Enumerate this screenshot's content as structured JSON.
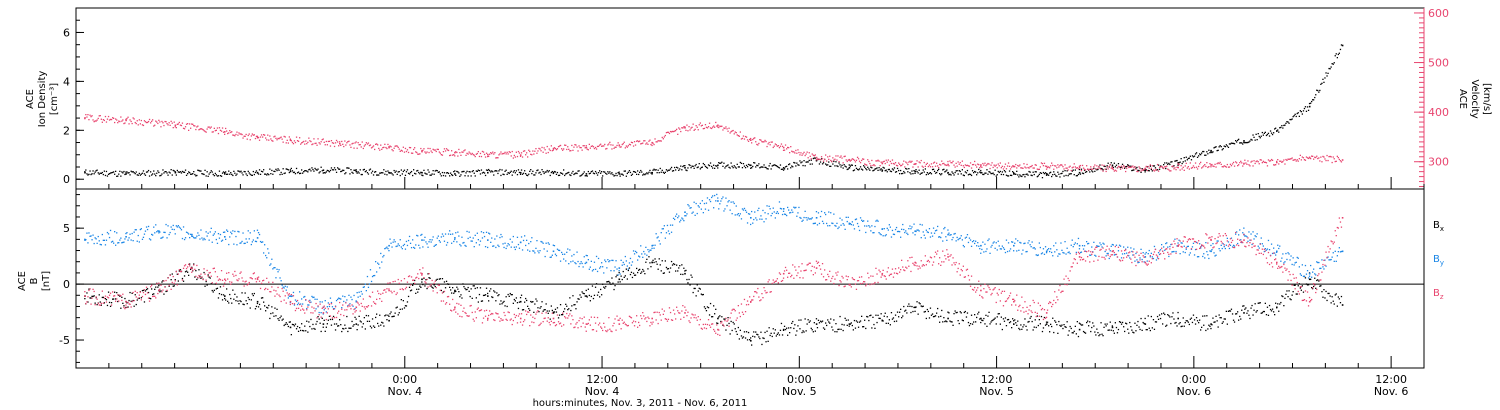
{
  "chart_data": [
    {
      "type": "scatter",
      "panel": "plasma",
      "x_range_hours": [
        -20,
        62
      ],
      "ylabel_left": [
        "ACE",
        "Ion Density",
        "[cm⁻³]"
      ],
      "ylabel_right": [
        "ACE",
        "Velocity",
        "[km/s]"
      ],
      "y_left_lim": [
        -0.4,
        7.0
      ],
      "y_left_ticks": [
        0,
        2,
        4,
        6
      ],
      "y_right_lim": [
        245,
        610
      ],
      "y_right_ticks": [
        300,
        400,
        500,
        600
      ],
      "series": [
        {
          "axis": "left",
          "color": "#000000",
          "x": [
            -19.5,
            -17,
            -14,
            -11,
            -9,
            -7,
            -5,
            -3,
            -1,
            1,
            3,
            5,
            7,
            9,
            11,
            13,
            15,
            17,
            19,
            21,
            23,
            25,
            27,
            29,
            31,
            33,
            35,
            37,
            39,
            41,
            43,
            45,
            47,
            49,
            51,
            53,
            55,
            57
          ],
          "y": [
            0.3,
            0.25,
            0.3,
            0.25,
            0.3,
            0.35,
            0.4,
            0.35,
            0.3,
            0.3,
            0.25,
            0.3,
            0.3,
            0.3,
            0.25,
            0.25,
            0.3,
            0.5,
            0.6,
            0.6,
            0.5,
            0.8,
            0.5,
            0.4,
            0.35,
            0.3,
            0.3,
            0.25,
            0.2,
            0.3,
            0.6,
            0.4,
            0.7,
            1.2,
            1.6,
            2.0,
            3.0,
            5.5
          ]
        },
        {
          "axis": "right",
          "color": "#e8456f",
          "x": [
            -19.5,
            -17,
            -14,
            -11,
            -9,
            -7,
            -4,
            -1,
            1,
            3,
            5,
            7,
            9,
            11,
            13,
            15,
            17,
            19,
            21,
            23,
            25,
            27,
            29,
            31,
            33,
            35,
            37,
            39,
            41,
            43,
            45,
            47,
            49,
            51,
            53,
            55,
            57
          ],
          "y": [
            390,
            385,
            375,
            362,
            350,
            345,
            338,
            330,
            322,
            320,
            316,
            315,
            328,
            330,
            335,
            340,
            370,
            375,
            345,
            330,
            310,
            305,
            298,
            297,
            296,
            295,
            292,
            292,
            290,
            288,
            288,
            290,
            295,
            298,
            300,
            310,
            305
          ]
        }
      ]
    },
    {
      "type": "scatter",
      "panel": "magnetic-field",
      "x_range_hours": [
        -20,
        62
      ],
      "ylabel_left": [
        "ACE",
        "B",
        "[nT]"
      ],
      "y_lim": [
        -7.5,
        8.5
      ],
      "y_ticks": [
        -5,
        0,
        5
      ],
      "series": [
        {
          "name": "Bx",
          "color": "#000000",
          "x": [
            -19.5,
            -17,
            -15,
            -13,
            -11,
            -9,
            -7,
            -5,
            -3,
            -1,
            1,
            3,
            5,
            7,
            9,
            11,
            13,
            15,
            17,
            19,
            21,
            23,
            25,
            27,
            29,
            31,
            33,
            35,
            37,
            39,
            41,
            43,
            45,
            47,
            49,
            51,
            53,
            55,
            57
          ],
          "y": [
            -1.0,
            -1.5,
            -0.5,
            1.5,
            -1.0,
            -1.5,
            -3.8,
            -3.5,
            -3.5,
            -3.2,
            0.5,
            -0.5,
            -1.0,
            -1.5,
            -2.5,
            -1.0,
            0.5,
            2.0,
            1.0,
            -3.0,
            -5.0,
            -4.0,
            -3.5,
            -3.5,
            -3.2,
            -2.0,
            -3.0,
            -3.0,
            -3.5,
            -3.5,
            -4.0,
            -3.8,
            -3.5,
            -3.0,
            -3.5,
            -2.5,
            -2.0,
            0.5,
            -1.8
          ]
        },
        {
          "name": "By",
          "color": "#1a86e6",
          "x": [
            -19.5,
            -17,
            -15,
            -13,
            -11,
            -9,
            -7,
            -5,
            -3,
            -1,
            1,
            3,
            5,
            7,
            9,
            11,
            13,
            15,
            17,
            19,
            21,
            23,
            25,
            27,
            29,
            31,
            33,
            35,
            37,
            39,
            41,
            43,
            45,
            47,
            49,
            51,
            53,
            55,
            57
          ],
          "y": [
            4.0,
            4.3,
            4.8,
            4.5,
            4.3,
            4.2,
            -1.0,
            -2.0,
            -1.5,
            3.5,
            4.0,
            4.2,
            4.0,
            3.8,
            3.0,
            2.0,
            1.5,
            3.5,
            6.5,
            7.5,
            6.0,
            6.8,
            6.0,
            5.5,
            5.0,
            4.8,
            4.5,
            3.5,
            3.5,
            3.0,
            3.5,
            3.0,
            2.5,
            3.5,
            3.0,
            4.5,
            3.0,
            1.0,
            3.0
          ]
        },
        {
          "name": "Bz",
          "color": "#e8456f",
          "x": [
            -19.5,
            -17,
            -15,
            -13,
            -11,
            -9,
            -7,
            -5,
            -3,
            -1,
            1,
            3,
            5,
            7,
            9,
            11,
            13,
            15,
            17,
            19,
            21,
            23,
            25,
            27,
            29,
            31,
            33,
            35,
            37,
            39,
            41,
            43,
            45,
            47,
            49,
            51,
            53,
            55,
            57
          ],
          "y": [
            -1.0,
            -1.5,
            -0.5,
            1.5,
            0.5,
            0.5,
            -1.5,
            -2.5,
            -2.0,
            -0.5,
            1.0,
            -2.0,
            -3.0,
            -3.0,
            -3.0,
            -3.5,
            -3.5,
            -3.0,
            -2.5,
            -4.0,
            -1.5,
            1.0,
            1.5,
            0.0,
            1.0,
            2.0,
            2.5,
            -0.5,
            -1.5,
            -2.5,
            2.5,
            3.0,
            2.0,
            3.5,
            4.0,
            4.0,
            2.0,
            -1.5,
            6.0
          ]
        }
      ],
      "zero_line": true
    }
  ],
  "x_axis": {
    "ticks": [
      {
        "hours": 0,
        "time": "0:00",
        "day": "Nov. 4"
      },
      {
        "hours": 12,
        "time": "12:00",
        "day": "Nov. 4"
      },
      {
        "hours": 24,
        "time": "0:00",
        "day": "Nov. 5"
      },
      {
        "hours": 36,
        "time": "12:00",
        "day": "Nov. 5"
      },
      {
        "hours": 48,
        "time": "0:00",
        "day": "Nov. 6"
      },
      {
        "hours": 60,
        "time": "12:00",
        "day": "Nov. 6"
      }
    ],
    "title": "hours:minutes, Nov.  3, 2011 - Nov.  6, 2011"
  },
  "legend": [
    {
      "label": "B",
      "sub": "x",
      "color": "#000000"
    },
    {
      "label": "B",
      "sub": "y",
      "color": "#1a86e6"
    },
    {
      "label": "B",
      "sub": "z",
      "color": "#e8456f"
    }
  ]
}
